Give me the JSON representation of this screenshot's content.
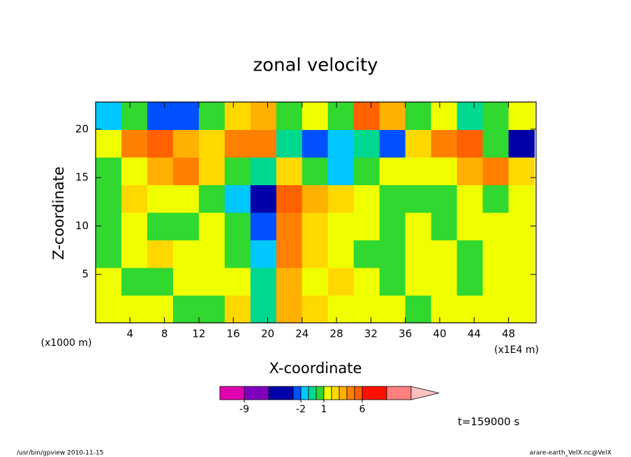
{
  "chart_data": {
    "type": "contour",
    "title": "zonal velocity",
    "x_label": "X-coordinate",
    "y_label": "Z-coordinate",
    "x_unit": "(x1E4 m)",
    "y_unit": "(x1000 m)",
    "annotation": "t=159000 s",
    "footer_left": "/usr/bin/gpview  2010-11-15",
    "footer_right": "arare-earth_VelX.nc@VelX",
    "xlim": [
      0,
      51.2
    ],
    "xticks": [
      4,
      8,
      12,
      16,
      20,
      24,
      28,
      32,
      36,
      40,
      44,
      48
    ],
    "ylim": [
      0,
      22.8
    ],
    "yticks": [
      5,
      10,
      15,
      20
    ],
    "x": [
      1.5,
      4.5,
      7.5,
      10.5,
      13.5,
      16.5,
      19.5,
      22.5,
      25.5,
      28.5,
      31.5,
      34.5,
      37.5,
      40.5,
      43.5,
      46.5,
      49.5
    ],
    "y": [
      1.425,
      4.275,
      7.125,
      9.975,
      12.825,
      15.675,
      18.525,
      21.375
    ],
    "z": [
      [
        1,
        1,
        1,
        0,
        0,
        2,
        -1,
        3,
        2,
        1,
        1,
        1,
        0,
        1,
        1,
        1,
        1
      ],
      [
        1,
        0,
        0,
        1,
        1,
        1,
        -1,
        3,
        1,
        2,
        1,
        0,
        1,
        1,
        0,
        1,
        1
      ],
      [
        0,
        1,
        2,
        1,
        1,
        0,
        -2,
        4,
        2,
        1,
        0,
        0,
        1,
        1,
        0,
        1,
        1
      ],
      [
        0,
        1,
        0,
        0,
        1,
        0,
        -3,
        4,
        2,
        1,
        1,
        0,
        1,
        0,
        1,
        1,
        1
      ],
      [
        0,
        2,
        1,
        1,
        0,
        -2,
        -4,
        5,
        3,
        2,
        1,
        0,
        0,
        0,
        1,
        0,
        1
      ],
      [
        0,
        1,
        3,
        4,
        2,
        0,
        -1,
        2,
        0,
        -2,
        0,
        1,
        1,
        1,
        3,
        4,
        2
      ],
      [
        1,
        4,
        5,
        3,
        2,
        4,
        4,
        -1,
        -3,
        -2,
        -1,
        -3,
        2,
        4,
        5,
        0,
        -4
      ],
      [
        -2,
        0,
        -3,
        -3,
        0,
        2,
        3,
        0,
        1,
        0,
        5,
        3,
        0,
        1,
        -1,
        0,
        1
      ]
    ],
    "colorbar": {
      "levels": [
        -12,
        -9,
        -6,
        -3,
        -2,
        -1,
        0,
        1,
        2,
        3,
        4,
        5,
        6,
        9,
        12
      ],
      "colors": [
        "#e000b0",
        "#8000c0",
        "#0000a8",
        "#0050ff",
        "#00c8ff",
        "#00d890",
        "#30d830",
        "#f0ff00",
        "#ffd800",
        "#ffb000",
        "#ff8000",
        "#ff6000",
        "#ff1000",
        "#ff8080"
      ],
      "over_color": "#ffc0c0",
      "ticks": [
        -9,
        -2,
        1,
        6
      ]
    }
  }
}
